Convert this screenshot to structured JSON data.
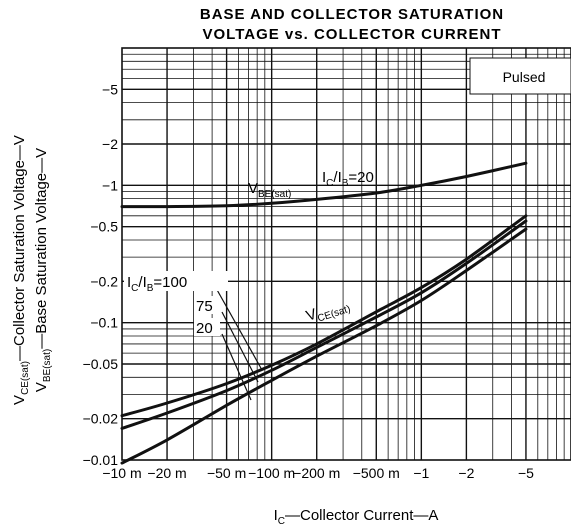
{
  "chart_data": {
    "type": "line",
    "title": [
      "BASE AND COLLECTOR SATURATION",
      "VOLTAGE vs. COLLECTOR CURRENT"
    ],
    "xlabel": {
      "main": "I",
      "sub": "C",
      "rest": "—Collector Current—A"
    },
    "ylabel": {
      "line1": {
        "main": "V",
        "sub": "CE(sat)",
        "rest": "—Collector Saturation Voltage—V"
      },
      "line2": {
        "main": "V",
        "sub": "BE(sat)",
        "rest": "—Base Saturation Voltage—V"
      }
    },
    "x_scale": "log",
    "y_scale": "log",
    "xlim": [
      -0.01,
      -10
    ],
    "ylim": [
      -0.01,
      -10
    ],
    "x_ticks": [
      {
        "value": -0.01,
        "label": "−10 m"
      },
      {
        "value": -0.02,
        "label": "−20 m"
      },
      {
        "value": -0.05,
        "label": "−50 m"
      },
      {
        "value": -0.1,
        "label": "−100 m"
      },
      {
        "value": -0.2,
        "label": "−200 m"
      },
      {
        "value": -0.5,
        "label": "−500 m"
      },
      {
        "value": -1,
        "label": "−1"
      },
      {
        "value": -2,
        "label": "−2"
      },
      {
        "value": -5,
        "label": "−5"
      }
    ],
    "y_ticks": [
      {
        "value": -0.01,
        "label": "−0.01"
      },
      {
        "value": -0.02,
        "label": "−0.02"
      },
      {
        "value": -0.05,
        "label": "−0.05"
      },
      {
        "value": -0.1,
        "label": "−0.1"
      },
      {
        "value": -0.2,
        "label": "−0.2"
      },
      {
        "value": -0.5,
        "label": "−0.5"
      },
      {
        "value": -1,
        "label": "−1"
      },
      {
        "value": -2,
        "label": "−2"
      },
      {
        "value": -5,
        "label": "−5"
      }
    ],
    "legend_box": {
      "text": "Pulsed",
      "position": "top-right"
    },
    "grid": true,
    "series": [
      {
        "x": [
          -0.01,
          -0.02,
          -0.05,
          -0.1,
          -0.2,
          -0.5,
          -1,
          -2,
          -5
        ],
        "y": [
          -0.7,
          -0.7,
          -0.71,
          -0.74,
          -0.79,
          -0.88,
          -1.0,
          -1.16,
          -1.45
        ]
      },
      {
        "x": [
          -0.01,
          -0.02,
          -0.05,
          -0.1,
          -0.2,
          -0.5,
          -1,
          -2,
          -5
        ],
        "y": [
          -0.021,
          -0.026,
          -0.036,
          -0.049,
          -0.07,
          -0.12,
          -0.18,
          -0.29,
          -0.6
        ]
      },
      {
        "x": [
          -0.01,
          -0.02,
          -0.05,
          -0.1,
          -0.2,
          -0.5,
          -1,
          -2,
          -5
        ],
        "y": [
          -0.017,
          -0.022,
          -0.032,
          -0.045,
          -0.066,
          -0.11,
          -0.165,
          -0.27,
          -0.55
        ]
      },
      {
        "x": [
          -0.01,
          -0.02,
          -0.05,
          -0.1,
          -0.2,
          -0.5,
          -1,
          -2,
          -5
        ],
        "y": [
          -0.0095,
          -0.014,
          -0.025,
          -0.038,
          -0.057,
          -0.095,
          -0.145,
          -0.24,
          -0.48
        ]
      }
    ],
    "annotations": {
      "vbe": {
        "main": "V",
        "sub": "BE(sat)",
        "ratio": {
          "main1": "I",
          "sub1": "C",
          "sep": "/I",
          "sub2": "B",
          "rest": "=20"
        }
      },
      "vce": {
        "main": "V",
        "sub": "CE(sat)"
      },
      "ratio_group": {
        "main1": "I",
        "sub1": "C",
        "sep": "/I",
        "sub2": "B",
        "rest": "=100"
      },
      "ratio_75": "75",
      "ratio_20": "20"
    }
  }
}
